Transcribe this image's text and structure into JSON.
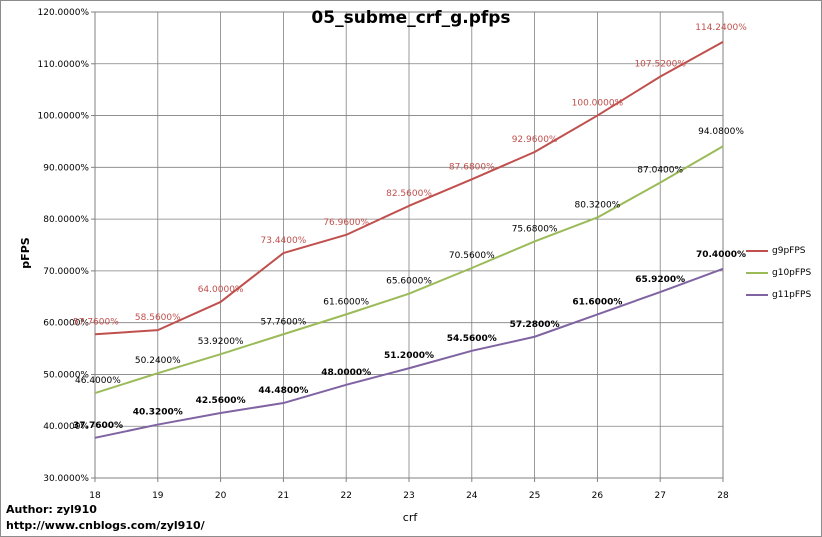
{
  "chart_data": {
    "type": "line",
    "title": "05_subme_crf_g.pfps",
    "xlabel": "crf",
    "ylabel": "pFPS",
    "x": [
      18,
      19,
      20,
      21,
      22,
      23,
      24,
      25,
      26,
      27,
      28
    ],
    "x_ticks": [
      "18",
      "19",
      "20",
      "21",
      "22",
      "23",
      "24",
      "25",
      "26",
      "27",
      "28"
    ],
    "ylim": [
      30,
      120
    ],
    "y_ticks": [
      "30.0000%",
      "40.0000%",
      "50.0000%",
      "60.0000%",
      "70.0000%",
      "80.0000%",
      "90.0000%",
      "100.0000%",
      "110.0000%",
      "120.0000%"
    ],
    "grid": true,
    "legend_position": "right",
    "series": [
      {
        "name": "g9pFPS",
        "color": "#c0504d",
        "values": [
          57.76,
          58.56,
          64.0,
          73.44,
          76.96,
          82.56,
          87.68,
          92.96,
          100.0,
          107.52,
          114.24
        ],
        "labels": [
          "57.7600%",
          "58.5600%",
          "64.0000%",
          "73.4400%",
          "76.9600%",
          "82.5600%",
          "87.6800%",
          "92.9600%",
          "100.0000%",
          "107.5200%",
          "114.2400%"
        ]
      },
      {
        "name": "g10pFPS",
        "color": "#9bbb59",
        "values": [
          46.4,
          50.24,
          53.92,
          57.76,
          61.6,
          65.6,
          70.56,
          75.68,
          80.32,
          87.04,
          94.08
        ],
        "labels": [
          "46.4000%",
          "50.2400%",
          "53.9200%",
          "57.7600%",
          "61.6000%",
          "65.6000%",
          "70.5600%",
          "75.6800%",
          "80.3200%",
          "87.0400%",
          "94.0800%"
        ]
      },
      {
        "name": "g11pFPS",
        "color": "#8064a2",
        "values": [
          37.76,
          40.32,
          42.56,
          44.48,
          48.0,
          51.2,
          54.56,
          57.28,
          61.6,
          65.92,
          70.4
        ],
        "labels": [
          "37.7600%",
          "40.3200%",
          "42.5600%",
          "44.4800%",
          "48.0000%",
          "51.2000%",
          "54.5600%",
          "57.2800%",
          "61.6000%",
          "65.9200%",
          "70.4000%"
        ]
      }
    ]
  },
  "footer": {
    "author": "Author: zyl910",
    "url": "http://www.cnblogs.com/zyl910/"
  }
}
